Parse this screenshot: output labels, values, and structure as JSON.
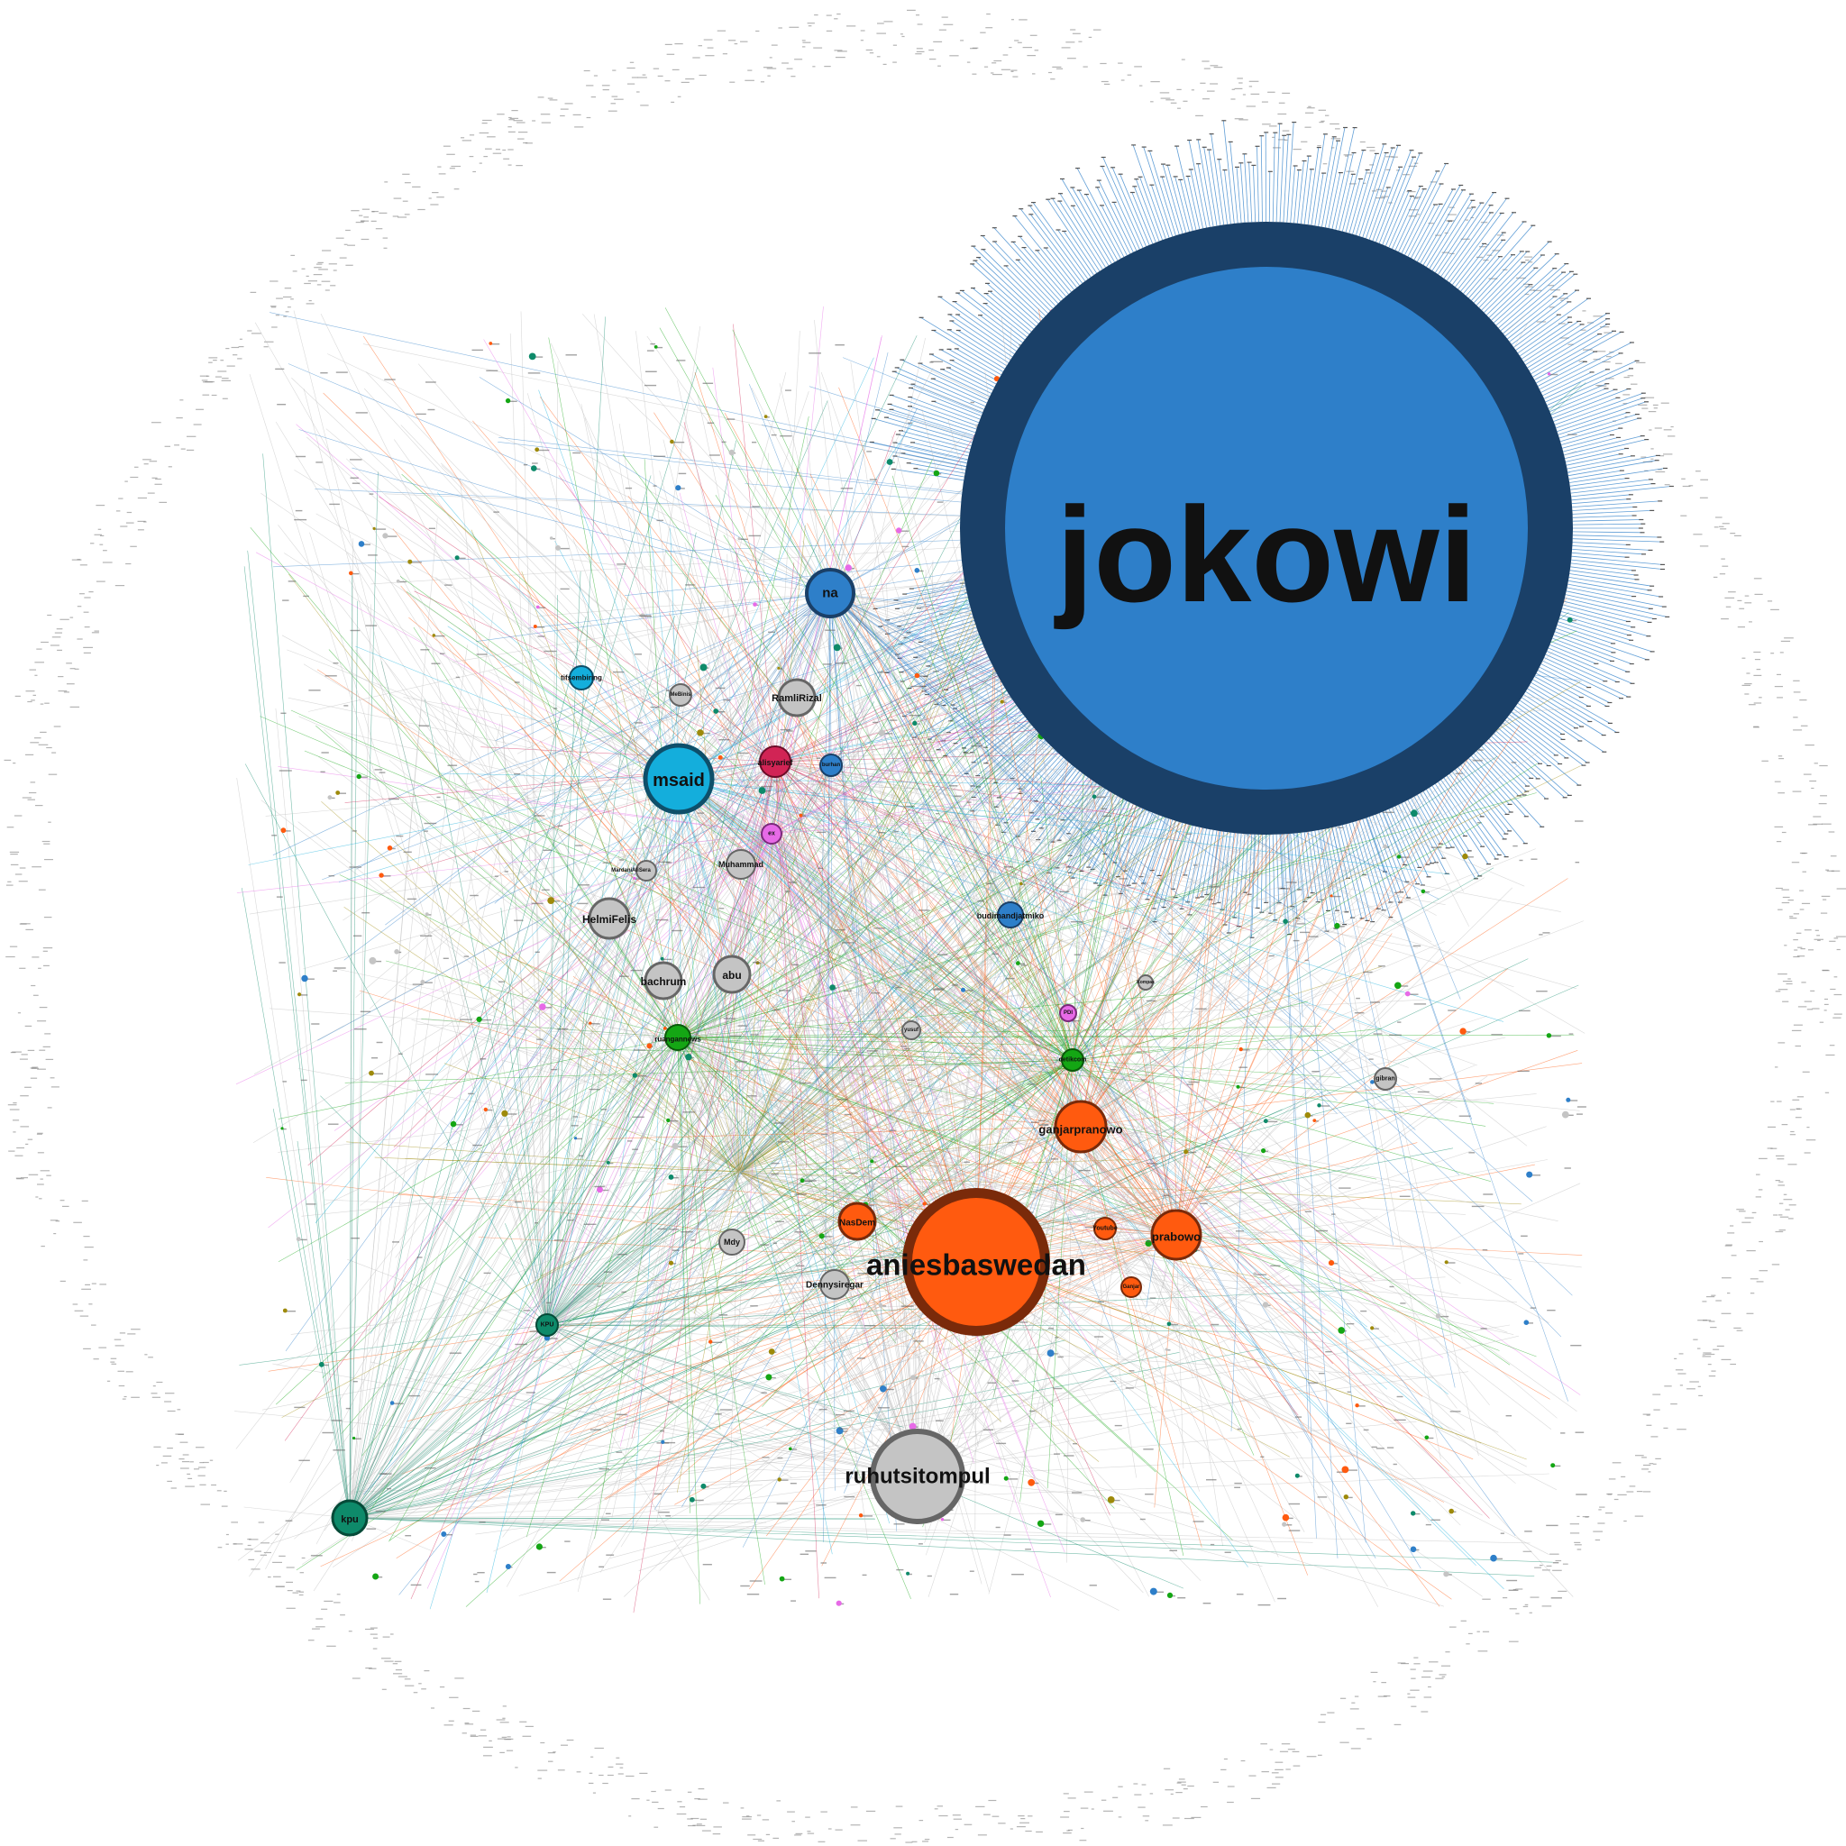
{
  "graph": {
    "palette": {
      "blue": "#2E7FC9",
      "blue_dark": "#1A4068",
      "cyan": "#14AEDC",
      "orange": "#FF5A0F",
      "orange_dark": "#7A2A0A",
      "green": "#14A614",
      "teal": "#0E8A6A",
      "olive": "#9E8A0A",
      "magenta": "#E76AE7",
      "crimson": "#D12455",
      "gray": "#C4C4C4",
      "edge_gray": "#BBBBBB"
    },
    "nodes": [
      {
        "id": "jokowi",
        "label": "jokowi",
        "color": "blue",
        "ring": "blue_dark",
        "size": 10
      },
      {
        "id": "aniesbaswedan",
        "label": "aniesbaswedan",
        "color": "orange",
        "ring": "orange_dark",
        "size": 6
      },
      {
        "id": "ruhutsitompul",
        "label": "ruhutsitompul",
        "color": "gray",
        "size": 5
      },
      {
        "id": "msaid",
        "label": "msaid",
        "color": "cyan",
        "size": 4
      },
      {
        "id": "ganjarpranowo",
        "label": "ganjarpranowo",
        "color": "orange",
        "size": 3
      },
      {
        "id": "prabowo",
        "label": "prabowo",
        "color": "orange",
        "size": 3
      },
      {
        "id": "na",
        "label": "na",
        "color": "blue",
        "size": 3
      },
      {
        "id": "kpu",
        "label": "kpu",
        "color": "teal",
        "size": 2
      },
      {
        "id": "HelmiFelis",
        "label": "HelmiFelis",
        "color": "gray",
        "size": 3
      },
      {
        "id": "bachrum",
        "label": "bachrum",
        "color": "gray",
        "size": 3
      },
      {
        "id": "abu",
        "label": "abu",
        "color": "gray",
        "size": 3
      },
      {
        "id": "RamliRizal",
        "label": "RamliRizal",
        "color": "gray",
        "size": 3
      },
      {
        "id": "NasDem",
        "label": "NasDem",
        "color": "orange",
        "size": 2
      },
      {
        "id": "Dennysiregar",
        "label": "Dennysiregar",
        "color": "gray",
        "size": 2
      },
      {
        "id": "alisyarief",
        "label": "alisyarief",
        "color": "crimson",
        "size": 2
      },
      {
        "id": "Muhammad",
        "label": "Muhammad",
        "color": "gray",
        "size": 2
      },
      {
        "id": "Mdy",
        "label": "Mdy",
        "color": "gray",
        "size": 2
      },
      {
        "id": "budimandjatmiko",
        "label": "budimandjatmiko",
        "color": "blue",
        "size": 2
      },
      {
        "id": "tifsembiring",
        "label": "tifsembiring",
        "color": "cyan",
        "size": 1
      },
      {
        "id": "Youtube",
        "label": "Youtube",
        "color": "orange",
        "size": 1
      },
      {
        "id": "gibran",
        "label": "gibran",
        "color": "gray",
        "size": 1
      },
      {
        "id": "detikcom",
        "label": "detikcom",
        "color": "green",
        "size": 1
      },
      {
        "id": "KPU",
        "label": "KPU",
        "color": "teal",
        "size": 1
      },
      {
        "id": "ruangannews",
        "label": "ruangannews",
        "color": "green",
        "size": 1
      },
      {
        "id": "MeBinis",
        "label": "MeBinis",
        "color": "gray",
        "size": 1
      },
      {
        "id": "burhan",
        "label": "burhan",
        "color": "blue",
        "size": 1
      },
      {
        "id": "ex",
        "label": "ex",
        "color": "magenta",
        "size": 1
      },
      {
        "id": "PDI",
        "label": "PDI",
        "color": "magenta",
        "size": 1
      },
      {
        "id": "Mardani",
        "label": "MardaniAliSera",
        "color": "gray",
        "size": 1
      },
      {
        "id": "yusuf",
        "label": "yusuf",
        "color": "gray",
        "size": 1
      },
      {
        "id": "Ganjar",
        "label": "Ganjar",
        "color": "orange",
        "size": 1
      },
      {
        "id": "Kompas",
        "label": "Kompas",
        "color": "gray",
        "size": 1
      }
    ]
  }
}
